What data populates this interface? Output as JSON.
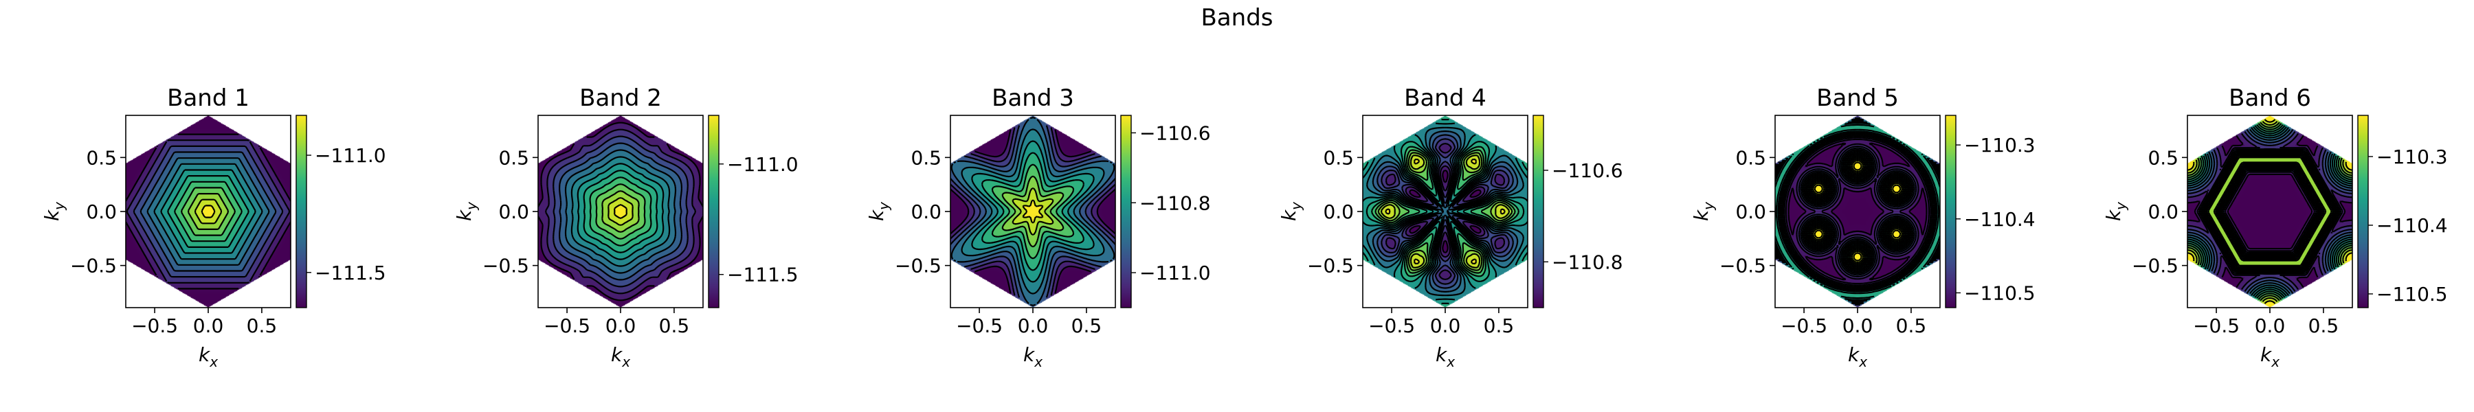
{
  "figure": {
    "title": "Bands"
  },
  "axis_labels": {
    "x_base": "k",
    "x_sub": "x",
    "y_base": "k",
    "y_sub": "y"
  },
  "colors": {
    "colormap": "viridis",
    "viridis_stops": [
      "#440154",
      "#482878",
      "#3e4989",
      "#31688e",
      "#26828e",
      "#1f9e89",
      "#35b779",
      "#6ece58",
      "#b5de2b",
      "#fde725"
    ],
    "contour_line": "#000000"
  },
  "chart_data": [
    {
      "type": "heatmap",
      "title": "Band 1",
      "domain": "hexagonal Brillouin zone",
      "xlim": [
        -0.77,
        0.77
      ],
      "ylim": [
        -0.89,
        0.89
      ],
      "xticks": [
        -0.5,
        0.0,
        0.5
      ],
      "xtick_labels": [
        "−0.5",
        "0.0",
        "0.5"
      ],
      "yticks": [
        -0.5,
        0.0,
        0.5
      ],
      "ytick_labels": [
        "−0.5",
        "0.0",
        "0.5"
      ],
      "colorbar": {
        "range": [
          -111.65,
          -110.83
        ],
        "ticks": [
          -111.0,
          -111.5
        ],
        "tick_labels": [
          "−111.0",
          "−111.5"
        ]
      },
      "pattern": {
        "hex": 1.0,
        "star": 0.0,
        "lobes": 0.0,
        "vertex": 0.0,
        "spots": 0.0,
        "invert": true,
        "levels": 14
      },
      "contours": "dashed"
    },
    {
      "type": "heatmap",
      "title": "Band 2",
      "domain": "hexagonal Brillouin zone",
      "xlim": [
        -0.77,
        0.77
      ],
      "ylim": [
        -0.89,
        0.89
      ],
      "xticks": [
        -0.5,
        0.0,
        0.5
      ],
      "xtick_labels": [
        "−0.5",
        "0.0",
        "0.5"
      ],
      "yticks": [
        -0.5,
        0.0,
        0.5
      ],
      "ytick_labels": [
        "−0.5",
        "0.0",
        "0.5"
      ],
      "colorbar": {
        "range": [
          -111.65,
          -110.78
        ],
        "ticks": [
          -111.0,
          -111.5
        ],
        "tick_labels": [
          "−111.0",
          "−111.5"
        ]
      },
      "pattern": {
        "hex": 0.75,
        "star": 0.35,
        "lobes": 0.0,
        "vertex": 0.0,
        "spots": 0.0,
        "invert": true,
        "levels": 14
      },
      "contours": "dashed"
    },
    {
      "type": "heatmap",
      "title": "Band 3",
      "domain": "hexagonal Brillouin zone",
      "xlim": [
        -0.77,
        0.77
      ],
      "ylim": [
        -0.89,
        0.89
      ],
      "xticks": [
        -0.5,
        0.0,
        0.5
      ],
      "xtick_labels": [
        "−0.5",
        "0.0",
        "0.5"
      ],
      "yticks": [
        -0.5,
        0.0,
        0.5
      ],
      "ytick_labels": [
        "−0.5",
        "0.0",
        "0.5"
      ],
      "colorbar": {
        "range": [
          -111.1,
          -110.55
        ],
        "ticks": [
          -110.6,
          -110.8,
          -111.0
        ],
        "tick_labels": [
          "−110.6",
          "−110.8",
          "−111.0"
        ]
      },
      "pattern": {
        "hex": 0.0,
        "star": 1.0,
        "lobes": 0.0,
        "vertex": 0.0,
        "spots": 0.0,
        "invert": true,
        "levels": 12
      },
      "contours": "dashed"
    },
    {
      "type": "heatmap",
      "title": "Band 4",
      "domain": "hexagonal Brillouin zone",
      "xlim": [
        -0.77,
        0.77
      ],
      "ylim": [
        -0.89,
        0.89
      ],
      "xticks": [
        -0.5,
        0.0,
        0.5
      ],
      "xtick_labels": [
        "−0.5",
        "0.0",
        "0.5"
      ],
      "yticks": [
        -0.5,
        0.0,
        0.5
      ],
      "ytick_labels": [
        "−0.5",
        "0.0",
        "0.5"
      ],
      "colorbar": {
        "range": [
          -110.9,
          -110.48
        ],
        "ticks": [
          -110.6,
          -110.8
        ],
        "tick_labels": [
          "−110.6",
          "−110.8"
        ]
      },
      "pattern": {
        "hex": 0.0,
        "star": 0.0,
        "lobes": 1.0,
        "vertex": 0.35,
        "spots": 0.0,
        "invert": false,
        "levels": 14
      },
      "contours": "dashed"
    },
    {
      "type": "heatmap",
      "title": "Band 5",
      "domain": "hexagonal Brillouin zone",
      "xlim": [
        -0.77,
        0.77
      ],
      "ylim": [
        -0.89,
        0.89
      ],
      "xticks": [
        -0.5,
        0.0,
        0.5
      ],
      "xtick_labels": [
        "−0.5",
        "0.0",
        "0.5"
      ],
      "yticks": [
        -0.5,
        0.0,
        0.5
      ],
      "ytick_labels": [
        "−0.5",
        "0.0",
        "0.5"
      ],
      "colorbar": {
        "range": [
          -110.52,
          -110.26
        ],
        "ticks": [
          -110.3,
          -110.4,
          -110.5
        ],
        "tick_labels": [
          "−110.3",
          "−110.4",
          "−110.5"
        ]
      },
      "pattern": {
        "hex": 0.0,
        "star": 0.0,
        "lobes": 0.0,
        "vertex": 0.0,
        "spots": 1.0,
        "invert": false,
        "levels": 16
      },
      "contours": "dashed"
    },
    {
      "type": "heatmap",
      "title": "Band 6",
      "domain": "hexagonal Brillouin zone",
      "xlim": [
        -0.77,
        0.77
      ],
      "ylim": [
        -0.89,
        0.89
      ],
      "xticks": [
        -0.5,
        0.0,
        0.5
      ],
      "xtick_labels": [
        "−0.5",
        "0.0",
        "0.5"
      ],
      "yticks": [
        -0.5,
        0.0,
        0.5
      ],
      "ytick_labels": [
        "−0.5",
        "0.0",
        "0.5"
      ],
      "colorbar": {
        "range": [
          -110.52,
          -110.24
        ],
        "ticks": [
          -110.3,
          -110.4,
          -110.5
        ],
        "tick_labels": [
          "−110.3",
          "−110.4",
          "−110.5"
        ]
      },
      "pattern": {
        "hex": 0.0,
        "star": 0.0,
        "lobes": 0.0,
        "vertex": 1.0,
        "spots": 0.0,
        "invert": false,
        "levels": 14
      },
      "contours": "dashed"
    }
  ]
}
